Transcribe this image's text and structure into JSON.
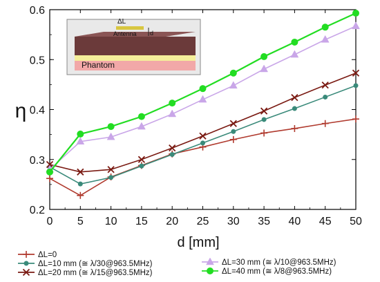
{
  "chart_data": {
    "type": "line",
    "xlabel": "d [mm]",
    "ylabel": "η",
    "xlim": [
      0,
      50
    ],
    "ylim": [
      0.2,
      0.6
    ],
    "xticks": [
      0,
      5,
      10,
      15,
      20,
      25,
      30,
      35,
      40,
      45,
      50
    ],
    "yticks": [
      0.2,
      0.3,
      0.4,
      0.5,
      0.6
    ],
    "x": [
      0,
      5,
      10,
      15,
      20,
      25,
      30,
      35,
      40,
      45,
      50
    ],
    "grid": false,
    "legend_position": "bottom",
    "series": [
      {
        "name": "ΔL=0",
        "color": "#b03a2e",
        "marker": "plus",
        "values": [
          0.262,
          0.228,
          0.265,
          0.288,
          0.311,
          0.325,
          0.34,
          0.353,
          0.362,
          0.372,
          0.381
        ]
      },
      {
        "name": "ΔL=10 mm (≅ λ/30@963.5MHz)",
        "color": "#3a8a7a",
        "marker": "circle-small",
        "values": [
          0.285,
          0.251,
          0.264,
          0.287,
          0.31,
          0.333,
          0.356,
          0.38,
          0.402,
          0.425,
          0.448
        ]
      },
      {
        "name": "ΔL=20 mm (≅ λ/15@963.5MHz)",
        "color": "#7a1a12",
        "marker": "cross",
        "values": [
          0.29,
          0.275,
          0.28,
          0.3,
          0.323,
          0.347,
          0.372,
          0.397,
          0.424,
          0.449,
          0.473
        ]
      },
      {
        "name": "ΔL=30 mm (≅ λ/10@963.5MHz)",
        "color": "#c9a6e8",
        "marker": "triangle",
        "values": [
          0.28,
          0.336,
          0.345,
          0.366,
          0.391,
          0.42,
          0.448,
          0.481,
          0.51,
          0.54,
          0.567
        ]
      },
      {
        "name": "ΔL=40 mm (≅ λ/8@963.5MHz)",
        "color": "#22dd22",
        "marker": "circle",
        "values": [
          0.275,
          0.351,
          0.366,
          0.386,
          0.413,
          0.442,
          0.473,
          0.506,
          0.535,
          0.565,
          0.593
        ]
      }
    ],
    "inset": {
      "labels": [
        "ΔL",
        "Antenna",
        "d",
        "Phantom"
      ],
      "colors": {
        "ground": "#6b3a3a",
        "antenna": "#f5ee9a",
        "phantom": "#f2a8a8"
      }
    }
  }
}
